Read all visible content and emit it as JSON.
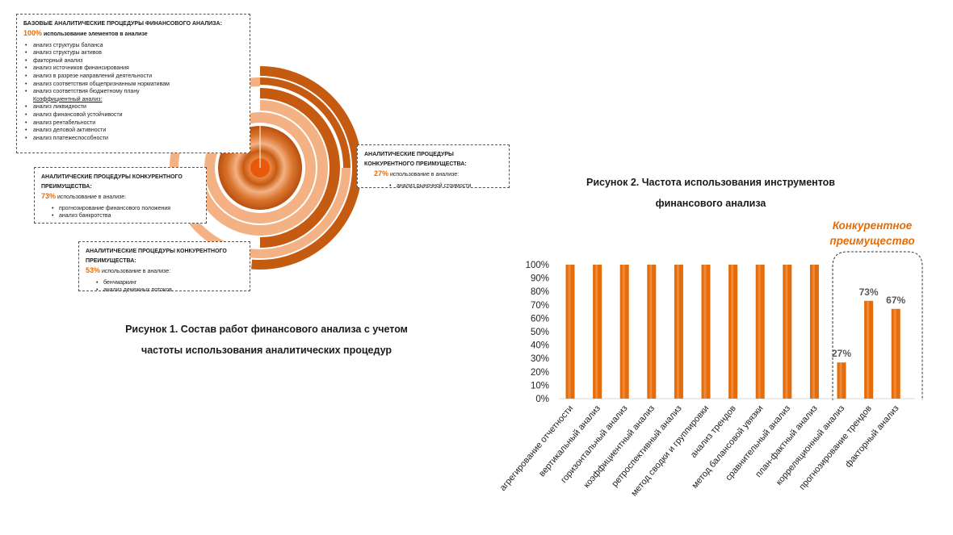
{
  "figure1": {
    "box_base": {
      "title": "БАЗОВЫЕ АНАЛИТИЧЕСКИЕ ПРОЦЕДУРЫ ФИНАНСОВОГО АНАЛИЗА:",
      "pct": "100%",
      "pct_text": " использование элементов в анализе",
      "items": [
        "анализ структуры баланса",
        "анализ структуры активов",
        "факторный анализ",
        "анализ источников финансирования",
        "анализ в разрезе направлений деятельности",
        "анализ соответствия общепризнанным нормативам",
        "анализ соответствия бюджетному плану"
      ],
      "subheading": "Коэффициентный анализ:",
      "sub_items": [
        "анализ ликвидности",
        "анализ финансовой устойчивости",
        "анализ рентабельности",
        "анализ деловой активности",
        "анализ платежеспособности"
      ]
    },
    "box_73": {
      "title": "АНАЛИТИЧЕСКИЕ ПРОЦЕДУРЫ КОНКУРЕНТНОГО ПРЕИМУЩЕСТВА:",
      "pct": "73%",
      "pct_text": " использование в анализе:",
      "items": [
        "прогнозирование финансового положения",
        "анализ банкротства"
      ]
    },
    "box_27": {
      "title": "АНАЛИТИЧЕСКИЕ ПРОЦЕДУРЫ КОНКУРЕНТНОГО ПРЕИМУЩЕСТВА:",
      "pct": "27%",
      "pct_text": " использование в анализе:",
      "items": [
        "анализ рыночной стоимости"
      ]
    },
    "box_53": {
      "title": "АНАЛИТИЧЕСКИЕ ПРОЦЕДУРЫ КОНКУРЕНТНОГО ПРЕИМУЩЕСТВА:",
      "pct": "53%",
      "pct_text": " использование в анализе:",
      "items": [
        "бенчмаркинг",
        "анализ денежных потоков"
      ]
    },
    "caption_line1": "Рисунок 1. Состав работ финансового анализа с учетом",
    "caption_line2": "частоты использования аналитических процедур",
    "colors": {
      "dark_orange": "#c55a11",
      "light_orange": "#f4b183",
      "accent": "#e46c0a"
    }
  },
  "figure2": {
    "caption_line1": "Рисунок 2. Частота использования инструментов",
    "caption_line2": "финансового анализа",
    "competitive_label_line1": "Конкурентное",
    "competitive_label_line2": "преимущество"
  },
  "chart_data": {
    "type": "bar",
    "categories": [
      "агрегирование отчетности",
      "вертикальный анализ",
      "горизонтальный анализ",
      "коэффициентный анализ",
      "ретроспективный анализ",
      "метод сводки и группировки",
      "анализ трендов",
      "метод балансовой увязки",
      "сравнительный анализ",
      "план-фактный анализ",
      "корреляционный анализ",
      "прогнозирование трендов",
      "факторный анализ"
    ],
    "values": [
      100,
      100,
      100,
      100,
      100,
      100,
      100,
      100,
      100,
      100,
      27,
      73,
      67
    ],
    "data_labels": [
      "",
      "",
      "",
      "",
      "",
      "",
      "",
      "",
      "",
      "",
      "27%",
      "73%",
      "67%"
    ],
    "yticks": [
      "0%",
      "10%",
      "20%",
      "30%",
      "40%",
      "50%",
      "60%",
      "70%",
      "80%",
      "90%",
      "100%"
    ],
    "ylim": [
      0,
      100
    ],
    "grid": false,
    "bar_color": "#e46c0a",
    "bar_highlight": "#f7a35c",
    "label_color": "#595959"
  }
}
